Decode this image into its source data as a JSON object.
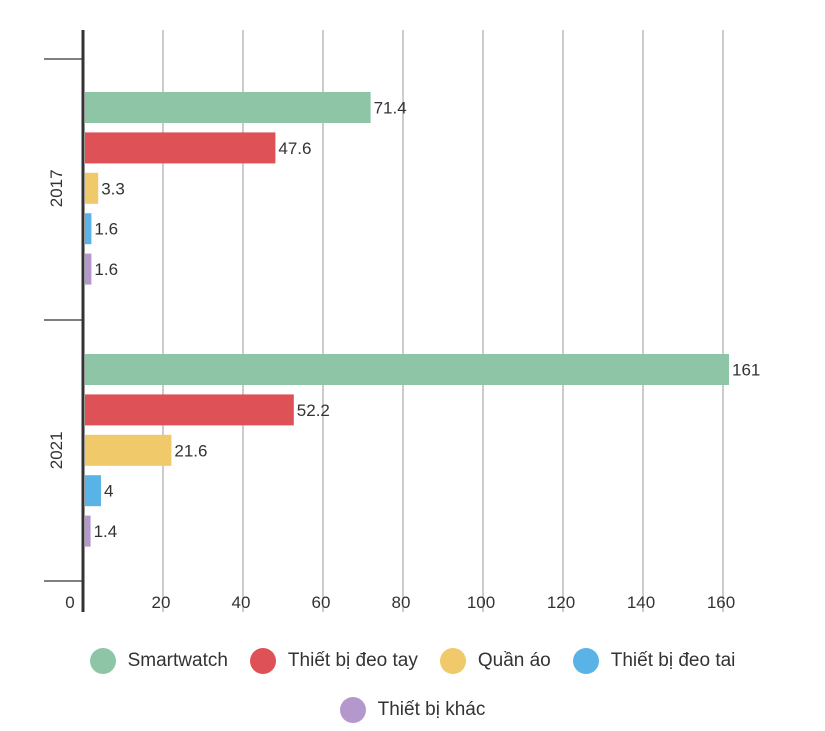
{
  "chart_data": {
    "type": "bar",
    "orientation": "horizontal",
    "categories": [
      "2017",
      "2021"
    ],
    "series": [
      {
        "name": "Smartwatch",
        "values": [
          71.4,
          161
        ],
        "labels": [
          "71.4",
          "161"
        ],
        "color": "#8fc5a7"
      },
      {
        "name": "Thiết bị đeo tay",
        "values": [
          47.6,
          52.2
        ],
        "labels": [
          "47.6",
          "52.2"
        ],
        "color": "#de5257"
      },
      {
        "name": "Quần áo",
        "values": [
          3.3,
          21.6
        ],
        "labels": [
          "3.3",
          "21.6"
        ],
        "color": "#efc96a"
      },
      {
        "name": "Thiết bị đeo tai",
        "values": [
          1.6,
          4
        ],
        "labels": [
          "1.6",
          "4"
        ],
        "color": "#5ab3e6"
      },
      {
        "name": "Thiết bị khác",
        "values": [
          1.6,
          1.4
        ],
        "labels": [
          "1.6",
          "1.4"
        ],
        "color": "#b498cc"
      }
    ],
    "xlim": [
      0,
      160
    ],
    "xticks": [
      0,
      20,
      40,
      60,
      80,
      100,
      120,
      140,
      160
    ],
    "xtick_labels": [
      "0",
      "20",
      "40",
      "60",
      "80",
      "100",
      "120",
      "140",
      "160"
    ],
    "grid": true,
    "legend_position": "bottom"
  }
}
